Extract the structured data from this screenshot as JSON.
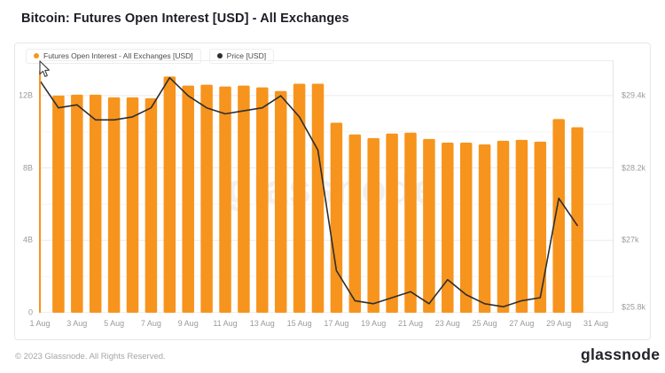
{
  "page": {
    "title": "Bitcoin: Futures Open Interest [USD] - All Exchanges",
    "footer_copyright": "© 2023 Glassnode. All Rights Reserved.",
    "logo_text": "glassnode",
    "watermark": "glassnode"
  },
  "legend": {
    "items": [
      {
        "label": "Futures Open Interest - All Exchanges [USD]",
        "color": "#f7941d"
      },
      {
        "label": "Price [USD]",
        "color": "#2e2e2e"
      }
    ]
  },
  "chart_data": {
    "type": "combo",
    "title": "Bitcoin: Futures Open Interest [USD] - All Exchanges",
    "categories": [
      "1 Aug",
      "2 Aug",
      "3 Aug",
      "4 Aug",
      "5 Aug",
      "6 Aug",
      "7 Aug",
      "8 Aug",
      "9 Aug",
      "10 Aug",
      "11 Aug",
      "12 Aug",
      "13 Aug",
      "14 Aug",
      "15 Aug",
      "16 Aug",
      "17 Aug",
      "18 Aug",
      "19 Aug",
      "20 Aug",
      "21 Aug",
      "22 Aug",
      "23 Aug",
      "24 Aug",
      "25 Aug",
      "26 Aug",
      "27 Aug",
      "28 Aug",
      "29 Aug",
      "30 Aug"
    ],
    "series": [
      {
        "name": "Futures Open Interest - All Exchanges [USD]",
        "type": "bar",
        "axis": "left",
        "unit": "billions USD",
        "color": "#f7941d",
        "first_bar_clipped": true,
        "values": [
          11.9,
          12.0,
          12.05,
          12.05,
          11.9,
          11.9,
          11.85,
          13.05,
          12.55,
          12.6,
          12.5,
          12.55,
          12.45,
          12.25,
          12.65,
          12.65,
          10.5,
          9.85,
          9.65,
          9.9,
          9.95,
          9.6,
          9.4,
          9.4,
          9.3,
          9.5,
          9.55,
          9.45,
          10.7,
          10.25
        ]
      },
      {
        "name": "Price [USD]",
        "type": "line",
        "axis": "right",
        "unit": "thousands USD",
        "color": "#2e2e2e",
        "values": [
          29.65,
          29.2,
          29.25,
          29.0,
          29.0,
          29.05,
          29.2,
          29.7,
          29.4,
          29.2,
          29.1,
          29.15,
          29.2,
          29.4,
          29.05,
          28.5,
          26.5,
          26.0,
          25.95,
          26.05,
          26.15,
          25.95,
          26.35,
          26.1,
          25.95,
          25.9,
          26.0,
          26.05,
          27.7,
          27.25
        ]
      }
    ],
    "left_axis": {
      "range": [
        0,
        13.95
      ],
      "major_ticks": [
        {
          "label": "0",
          "value": 0
        },
        {
          "label": "4B",
          "value": 4
        },
        {
          "label": "8B",
          "value": 8
        },
        {
          "label": "12B",
          "value": 12
        }
      ],
      "minor_ticks": [
        2,
        6,
        10
      ]
    },
    "right_axis": {
      "range_k": [
        25.8,
        29.99
      ],
      "ticks": [
        {
          "label": "$25.8k",
          "value": 25.8
        },
        {
          "label": "$27k",
          "value": 27.0
        },
        {
          "label": "$28.2k",
          "value": 28.2
        },
        {
          "label": "$29.4k",
          "value": 29.4
        }
      ]
    },
    "x_axis": {
      "tick_labels": [
        "1 Aug",
        "3 Aug",
        "5 Aug",
        "7 Aug",
        "9 Aug",
        "11 Aug",
        "13 Aug",
        "15 Aug",
        "17 Aug",
        "19 Aug",
        "21 Aug",
        "23 Aug",
        "25 Aug",
        "27 Aug",
        "29 Aug",
        "31 Aug"
      ]
    },
    "grid": true,
    "legend_position": "top-left"
  }
}
